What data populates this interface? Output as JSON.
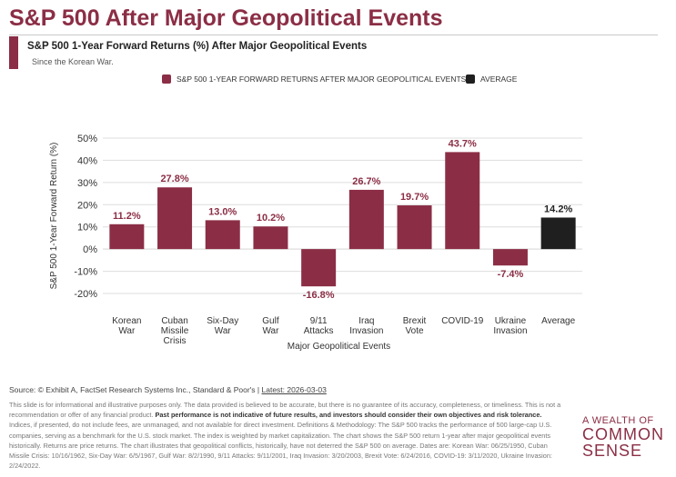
{
  "header": {
    "title": "S&P 500 After Major Geopolitical Events",
    "subtitle": "S&P 500 1-Year Forward Returns (%) After Major Geopolitical Events",
    "note": "Since the Korean War."
  },
  "colors": {
    "brand": "#8b2e45",
    "event_bar": "#8b2e45",
    "average_bar": "#1f1f1f",
    "grid": "#dddddd"
  },
  "chart_data": {
    "type": "bar",
    "categories": [
      [
        "Korean",
        "War"
      ],
      [
        "Cuban",
        "Missile",
        "Crisis"
      ],
      [
        "Six-Day",
        "War"
      ],
      [
        "Gulf",
        "War"
      ],
      [
        "9/11",
        "Attacks"
      ],
      [
        "Iraq",
        "Invasion"
      ],
      [
        "Brexit",
        "Vote"
      ],
      [
        "COVID-19"
      ],
      [
        "Ukraine",
        "Invasion"
      ],
      [
        "Average"
      ]
    ],
    "values": [
      11.2,
      27.8,
      13.0,
      10.2,
      -16.8,
      26.7,
      19.7,
      43.7,
      -7.4,
      14.2
    ],
    "value_labels": [
      "11.2%",
      "27.8%",
      "13.0%",
      "10.2%",
      "-16.8%",
      "26.7%",
      "19.7%",
      "43.7%",
      "-7.4%",
      "14.2%"
    ],
    "bar_series": [
      "event",
      "event",
      "event",
      "event",
      "event",
      "event",
      "event",
      "event",
      "event",
      "average"
    ],
    "legend": [
      {
        "label": "S&P 500 1-YEAR FORWARD RETURNS AFTER MAJOR GEOPOLITICAL EVENTS",
        "series": "event"
      },
      {
        "label": "AVERAGE",
        "series": "average"
      }
    ],
    "legend_position": "top",
    "xlabel": "Major Geopolitical Events",
    "ylabel": "S&P 500 1-Year Forward Return (%)",
    "ylim": [
      -20,
      50
    ],
    "yticks": [
      50,
      40,
      30,
      20,
      10,
      0,
      -10,
      -20
    ],
    "ytick_labels": [
      "50%",
      "40%",
      "30%",
      "20%",
      "10%",
      "0%",
      "-10%",
      "-20%"
    ],
    "grid": true
  },
  "footer": {
    "source_prefix": "Source: © Exhibit A, FactSet Research Systems Inc., Standard & Poor's | ",
    "latest": "Latest: 2026-03-03",
    "disclaimer_1": "This slide is for informational and illustrative purposes only. The data provided is believed to be accurate, but there is no guarantee of its accuracy, completeness, or timeliness. This is not a recommendation or offer of any financial product. ",
    "disclaimer_bold": "Past performance is not indicative of future results, and investors should consider their own objectives and risk tolerance.",
    "disclaimer_2": " Indices, if presented, do not include fees, are unmanaged, and not available for direct investment. Definitions & Methodology: The S&P 500 tracks the performance of 500 large-cap U.S. companies, serving as a benchmark for the U.S. stock market. The index is weighted by market capitalization. The chart shows the S&P 500 return 1-year after major geopolitical events historically. Returns are price returns. The chart illustrates that geopolitical conflicts, historically, have not deterred the S&P 500 on average. Dates are: Korean War: 06/25/1950, Cuban Missile Crisis: 10/16/1962, Six-Day War: 6/5/1967, Gulf War: 8/2/1990, 9/11 Attacks: 9/11/2001, Iraq Invasion: 3/20/2003, Brexit Vote: 6/24/2016, COVID-19: 3/11/2020, Ukraine Invasion: 2/24/2022."
  },
  "logo": {
    "line1": "A WEALTH OF",
    "line2": "COMMON",
    "line3": "SENSE"
  }
}
